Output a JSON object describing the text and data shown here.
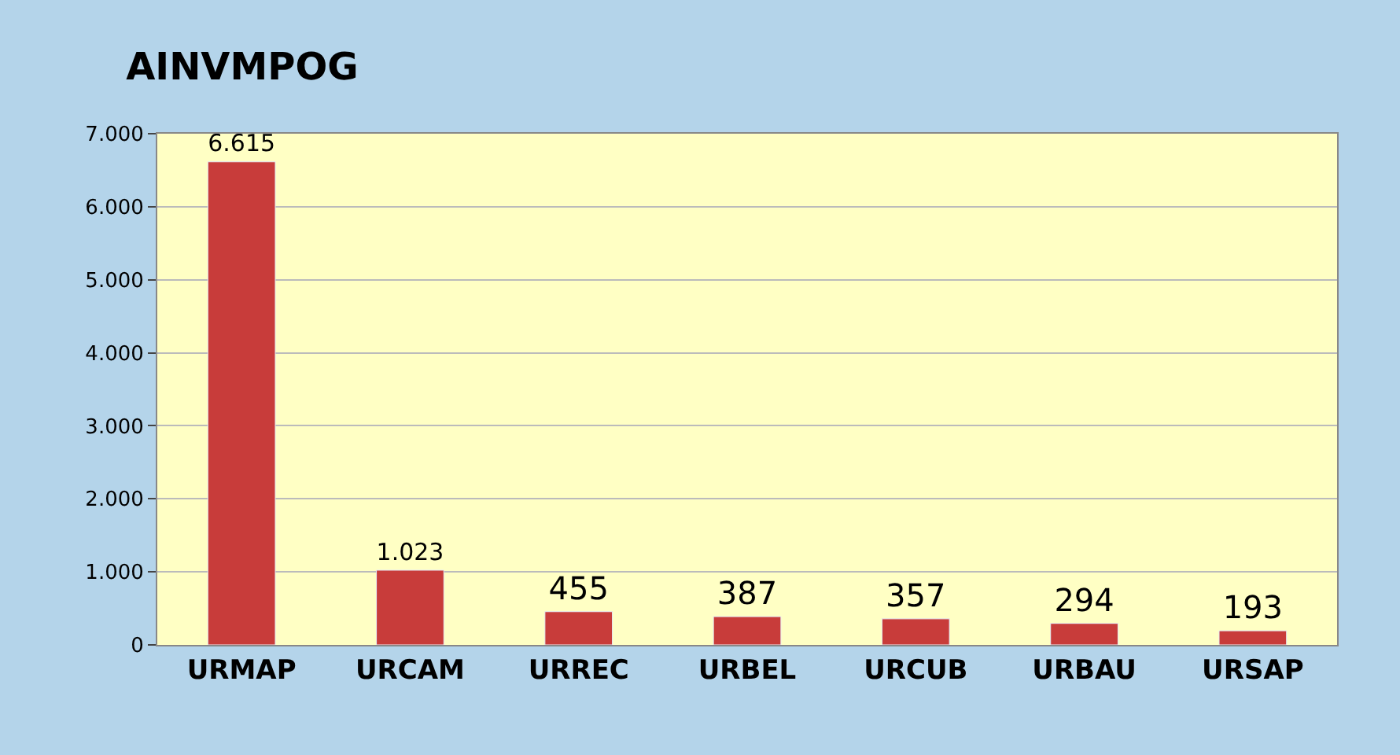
{
  "chart_data": {
    "type": "bar",
    "title": "AINVMPOG",
    "categories": [
      "URMAP",
      "URCAM",
      "URREC",
      "URBEL",
      "URCUB",
      "URBAU",
      "URSAP"
    ],
    "values": [
      6615,
      1023,
      455,
      387,
      357,
      294,
      193
    ],
    "value_labels": [
      "6.615",
      "1.023",
      "455",
      "387",
      "357",
      "294",
      "193"
    ],
    "color": "#c83c3a",
    "ylim": [
      0,
      7000
    ],
    "yticks": [
      0,
      {
        "value": 1000,
        "label": "1.000"
      },
      {
        "value": 2000,
        "label": "2.000"
      },
      {
        "value": 3000,
        "label": "3.000"
      },
      {
        "value": 4000,
        "label": "4.000"
      },
      {
        "value": 5000,
        "label": "5.000"
      },
      {
        "value": 6000,
        "label": "6.000"
      },
      {
        "value": 7000,
        "label": "7.000"
      }
    ],
    "grid": "y"
  }
}
